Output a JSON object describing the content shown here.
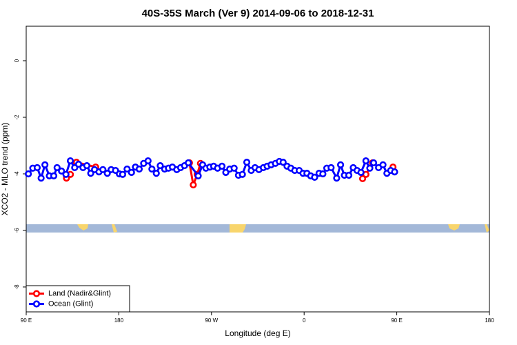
{
  "chart_data": {
    "type": "line",
    "title": "40S-35S March (Ver 9)   2014-09-06 to 2018-12-31",
    "x_label": "Longitude (deg E)",
    "y_label": "XCO2 - MLO trend (ppm)",
    "xlim": [
      90,
      540
    ],
    "xticks": [
      {
        "value": 90,
        "label": "90 E"
      },
      {
        "value": 180,
        "label": "180"
      },
      {
        "value": 270,
        "label": "90 W"
      },
      {
        "value": 360,
        "label": "0"
      },
      {
        "value": 450,
        "label": "90 E"
      },
      {
        "value": 540,
        "label": "180"
      }
    ],
    "ylim": [
      -8.88,
      1.22
    ],
    "yticks": [
      0,
      -2,
      -4,
      -6,
      -8
    ],
    "legend": "bottom-left",
    "series": [
      {
        "name": "Land (Nadir&Glint)",
        "color": "#ff0000",
        "x": [
          129.1,
          132.9,
          null,
          138.8,
          157.5,
          null,
          248.6,
          252.3,
          256.1,
          259.3,
          null,
          416.8,
          420.0,
          426.5,
          null,
          446.3
        ],
        "values": [
          -4.15,
          -4.02,
          null,
          -3.59,
          -3.76,
          null,
          -3.61,
          -4.39,
          -4.02,
          -3.63,
          null,
          -4.17,
          -4.02,
          -3.61,
          null,
          -3.76
        ]
      },
      {
        "name": "Ocean (Glint)",
        "color": "#0000ff",
        "x": [
          92.1,
          96.4,
          100.7,
          104.5,
          108.2,
          112.5,
          116.8,
          120.0,
          124.3,
          128.6,
          132.9,
          137.1,
          140.9,
          145.2,
          148.9,
          152.7,
          156.4,
          160.7,
          164.5,
          168.8,
          172.5,
          176.8,
          180.5,
          183.7,
          188.0,
          192.3,
          196.1,
          199.8,
          204.1,
          208.4,
          212.1,
          216.4,
          220.2,
          224.5,
          228.2,
          232.0,
          236.3,
          240.0,
          243.8,
          247.5,
          257.1,
          261.4,
          264.6,
          268.4,
          272.1,
          275.9,
          280.2,
          283.9,
          287.7,
          292.0,
          296.2,
          300.0,
          304.3,
          308.6,
          312.3,
          316.1,
          320.4,
          324.1,
          327.9,
          332.1,
          335.9,
          339.6,
          343.4,
          347.1,
          350.9,
          355.2,
          358.9,
          362.7,
          366.4,
          370.2,
          374.5,
          378.2,
          382.0,
          386.2,
          391.6,
          395.4,
          399.1,
          403.4,
          407.7,
          411.4,
          415.2,
          420.0,
          423.8,
          427.5,
          432.3,
          436.6,
          440.4,
          444.1,
          447.9
        ],
        "values": [
          -4.0,
          -3.8,
          -3.78,
          -4.15,
          -3.68,
          -4.07,
          -4.07,
          -3.78,
          -3.9,
          -4.02,
          -3.54,
          -3.78,
          -3.66,
          -3.78,
          -3.71,
          -3.98,
          -3.85,
          -3.93,
          -3.85,
          -3.98,
          -3.85,
          -3.88,
          -4.0,
          -4.02,
          -3.83,
          -3.95,
          -3.76,
          -3.83,
          -3.63,
          -3.54,
          -3.83,
          -3.98,
          -3.71,
          -3.83,
          -3.8,
          -3.76,
          -3.85,
          -3.78,
          -3.71,
          -3.61,
          -4.07,
          -3.68,
          -3.8,
          -3.76,
          -3.73,
          -3.8,
          -3.73,
          -3.95,
          -3.83,
          -3.8,
          -4.05,
          -4.02,
          -3.59,
          -3.88,
          -3.78,
          -3.85,
          -3.78,
          -3.73,
          -3.68,
          -3.63,
          -3.56,
          -3.59,
          -3.73,
          -3.8,
          -3.88,
          -3.88,
          -3.98,
          -3.98,
          -4.07,
          -4.12,
          -3.98,
          -4.0,
          -3.8,
          -3.78,
          -4.15,
          -3.68,
          -4.05,
          -4.05,
          -3.78,
          -3.88,
          -3.95,
          -3.54,
          -3.8,
          -3.61,
          -3.78,
          -3.68,
          -3.98,
          -3.88,
          -3.93
        ]
      }
    ]
  }
}
